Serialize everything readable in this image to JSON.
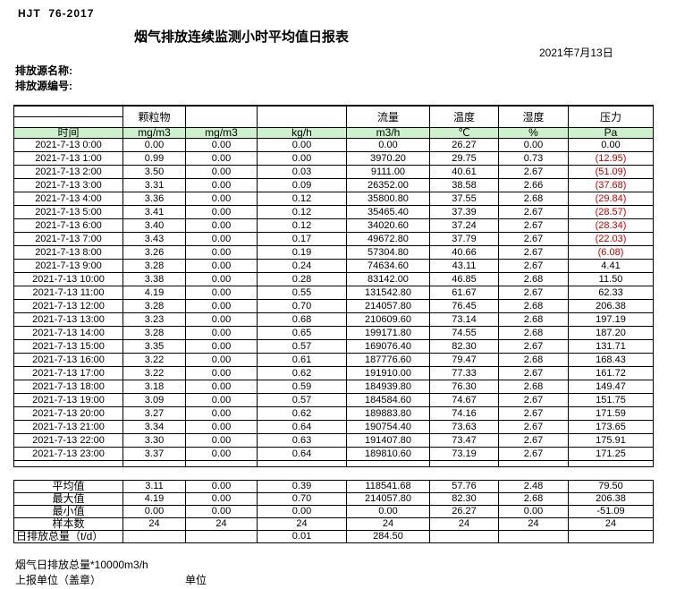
{
  "page": {
    "standard_code": "HJT  76-2017",
    "title": "烟气排放连续监测小时平均值日报表",
    "date": "2021年7月13日",
    "source_name_label": "排放源名称:",
    "source_code_label": "排放源编号:"
  },
  "colors": {
    "header_green": "#ccf2cc",
    "negative_red": "#cc0000"
  },
  "table": {
    "time_header": "时间",
    "column_groups": [
      "颗粒物",
      "",
      "",
      "流量",
      "温度",
      "湿度",
      "压力"
    ],
    "units": [
      "mg/m3",
      "mg/m3",
      "kg/h",
      "m3/h",
      "℃",
      "%",
      "Pa"
    ],
    "rows": [
      {
        "time": "2021-7-13 0:00",
        "values": [
          "0.00",
          "0.00",
          "0.00",
          "0.00",
          "26.27",
          "0.00",
          "0.00"
        ]
      },
      {
        "time": "2021-7-13 1:00",
        "values": [
          "0.99",
          "0.00",
          "0.00",
          "3970.20",
          "29.75",
          "0.73",
          "(12.95)"
        ]
      },
      {
        "time": "2021-7-13 2:00",
        "values": [
          "3.50",
          "0.00",
          "0.03",
          "9111.00",
          "40.61",
          "2.67",
          "(51.09)"
        ]
      },
      {
        "time": "2021-7-13 3:00",
        "values": [
          "3.31",
          "0.00",
          "0.09",
          "26352.00",
          "38.58",
          "2.66",
          "(37.68)"
        ]
      },
      {
        "time": "2021-7-13 4:00",
        "values": [
          "3.36",
          "0.00",
          "0.12",
          "35800.80",
          "37.55",
          "2.68",
          "(29.84)"
        ]
      },
      {
        "time": "2021-7-13 5:00",
        "values": [
          "3.41",
          "0.00",
          "0.12",
          "35465.40",
          "37.39",
          "2.67",
          "(28.57)"
        ]
      },
      {
        "time": "2021-7-13 6:00",
        "values": [
          "3.40",
          "0.00",
          "0.12",
          "34020.60",
          "37.24",
          "2.67",
          "(28.34)"
        ]
      },
      {
        "time": "2021-7-13 7:00",
        "values": [
          "3.43",
          "0.00",
          "0.17",
          "49672.80",
          "37.79",
          "2.67",
          "(22.03)"
        ]
      },
      {
        "time": "2021-7-13 8:00",
        "values": [
          "3.26",
          "0.00",
          "0.19",
          "57304.80",
          "40.66",
          "2.67",
          "(6.08)"
        ]
      },
      {
        "time": "2021-7-13 9:00",
        "values": [
          "3.28",
          "0.00",
          "0.24",
          "74634.60",
          "43.11",
          "2.67",
          "4.41"
        ]
      },
      {
        "time": "2021-7-13 10:00",
        "values": [
          "3.38",
          "0.00",
          "0.28",
          "83142.00",
          "46.85",
          "2.68",
          "11.50"
        ]
      },
      {
        "time": "2021-7-13 11:00",
        "values": [
          "4.19",
          "0.00",
          "0.55",
          "131542.80",
          "61.67",
          "2.67",
          "62.33"
        ]
      },
      {
        "time": "2021-7-13 12:00",
        "values": [
          "3.28",
          "0.00",
          "0.70",
          "214057.80",
          "76.45",
          "2.68",
          "206.38"
        ]
      },
      {
        "time": "2021-7-13 13:00",
        "values": [
          "3.23",
          "0.00",
          "0.68",
          "210609.60",
          "73.14",
          "2.68",
          "197.19"
        ]
      },
      {
        "time": "2021-7-13 14:00",
        "values": [
          "3.28",
          "0.00",
          "0.65",
          "199171.80",
          "74.55",
          "2.68",
          "187.20"
        ]
      },
      {
        "time": "2021-7-13 15:00",
        "values": [
          "3.35",
          "0.00",
          "0.57",
          "169076.40",
          "82.30",
          "2.67",
          "131.71"
        ]
      },
      {
        "time": "2021-7-13 16:00",
        "values": [
          "3.22",
          "0.00",
          "0.61",
          "187776.60",
          "79.47",
          "2.68",
          "168.43"
        ]
      },
      {
        "time": "2021-7-13 17:00",
        "values": [
          "3.22",
          "0.00",
          "0.62",
          "191910.00",
          "77.33",
          "2.67",
          "161.72"
        ]
      },
      {
        "time": "2021-7-13 18:00",
        "values": [
          "3.18",
          "0.00",
          "0.59",
          "184939.80",
          "76.30",
          "2.68",
          "149.47"
        ]
      },
      {
        "time": "2021-7-13 19:00",
        "values": [
          "3.09",
          "0.00",
          "0.57",
          "184584.60",
          "74.67",
          "2.67",
          "151.75"
        ]
      },
      {
        "time": "2021-7-13 20:00",
        "values": [
          "3.27",
          "0.00",
          "0.62",
          "189883.80",
          "74.16",
          "2.67",
          "171.59"
        ]
      },
      {
        "time": "2021-7-13 21:00",
        "values": [
          "3.34",
          "0.00",
          "0.64",
          "190754.40",
          "73.63",
          "2.67",
          "173.65"
        ]
      },
      {
        "time": "2021-7-13 22:00",
        "values": [
          "3.30",
          "0.00",
          "0.63",
          "191407.80",
          "73.47",
          "2.67",
          "175.91"
        ]
      },
      {
        "time": "2021-7-13 23:00",
        "values": [
          "3.37",
          "0.00",
          "0.64",
          "189810.60",
          "73.19",
          "2.67",
          "171.25"
        ]
      }
    ]
  },
  "summary": {
    "rows": [
      {
        "label": "平均值",
        "align": "center",
        "values": [
          "3.11",
          "0.00",
          "0.39",
          "118541.68",
          "57.76",
          "2.48",
          "79.50"
        ]
      },
      {
        "label": "最大值",
        "align": "center",
        "values": [
          "4.19",
          "0.00",
          "0.70",
          "214057.80",
          "82.30",
          "2.68",
          "206.38"
        ]
      },
      {
        "label": "最小值",
        "align": "center",
        "values": [
          "0.00",
          "0.00",
          "0.00",
          "0.00",
          "26.27",
          "0.00",
          "-51.09"
        ]
      },
      {
        "label": "样本数",
        "align": "center",
        "values": [
          "24",
          "24",
          "24",
          "24",
          "24",
          "24",
          "24"
        ]
      },
      {
        "label": "日排放总量（t/d）",
        "align": "left",
        "values": [
          "",
          "",
          "0.01",
          "284.50",
          "",
          "",
          ""
        ]
      }
    ]
  },
  "footer": {
    "note": "烟气日排放总量*10000m3/h",
    "report_unit_label": "上报单位（盖章）",
    "unit_label": "单位"
  }
}
